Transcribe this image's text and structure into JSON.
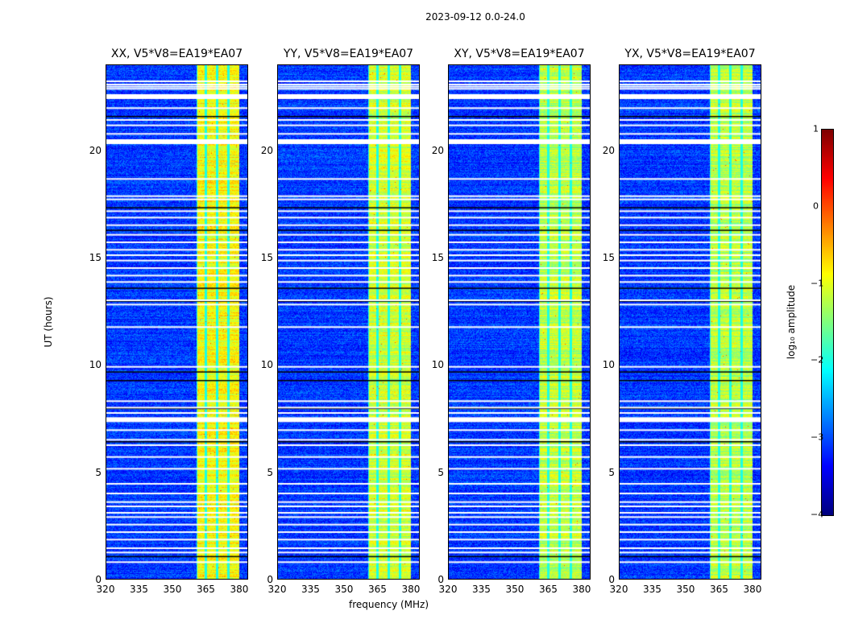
{
  "chart_data": {
    "type": "heatmap",
    "title": "2023-09-12 0.0-24.0",
    "xlabel": "frequency (MHz)",
    "ylabel": "UT (hours)",
    "xlim": [
      320,
      384
    ],
    "ylim": [
      0,
      24
    ],
    "xticks": [
      "320",
      "335",
      "350",
      "365",
      "380"
    ],
    "xtick_values": [
      320,
      335,
      350,
      365,
      380
    ],
    "yticks": [
      "0",
      "5",
      "10",
      "15",
      "20"
    ],
    "ytick_values": [
      0,
      5,
      10,
      15,
      20
    ],
    "colormap": "jet",
    "colorbar": {
      "label": "log₁₀ amplitude",
      "range": [
        -4,
        1
      ],
      "ticks": [
        "1",
        "0",
        "−1",
        "−2",
        "−3",
        "−4"
      ],
      "tick_values": [
        1,
        0,
        -1,
        -2,
        -3,
        -4
      ]
    },
    "background_level": -3.1,
    "rfi_band_mhz": [
      360.5,
      380
    ],
    "rfi_subbands_mhz": [
      [
        360.5,
        365
      ],
      [
        365,
        370
      ],
      [
        370,
        375
      ],
      [
        375,
        380
      ]
    ],
    "flagged_hours": [
      23.25,
      23.1,
      23.0,
      22.9,
      22.6,
      22.0,
      21.45,
      21.2,
      20.8,
      20.4,
      18.7,
      17.9,
      17.75,
      17.2,
      16.9,
      16.55,
      16.1,
      15.75,
      15.4,
      15.15,
      14.9,
      14.55,
      14.2,
      13.9,
      13.05,
      12.85,
      11.8,
      9.95,
      8.35,
      8.05,
      7.8,
      7.45,
      7.0,
      6.55,
      6.3,
      5.75,
      5.2,
      4.5,
      4.05,
      3.65,
      3.45,
      3.15,
      2.95,
      2.6,
      2.25,
      1.9,
      1.5,
      1.3,
      0.85
    ],
    "thick_flagged_hours": [
      20.4,
      7.45,
      22.5
    ],
    "dark_hours": [
      21.6,
      17.35,
      16.3,
      13.6,
      13.0,
      9.7,
      9.3,
      8.0,
      6.45,
      1.1
    ],
    "panels": [
      {
        "title": "XX, V5*V8=EA19*EA07",
        "band_level": -0.9
      },
      {
        "title": "YY, V5*V8=EA19*EA07",
        "band_level": -1.1
      },
      {
        "title": "XY, V5*V8=EA19*EA07",
        "band_level": -1.2
      },
      {
        "title": "YX, V5*V8=EA19*EA07",
        "band_level": -1.2
      }
    ]
  }
}
